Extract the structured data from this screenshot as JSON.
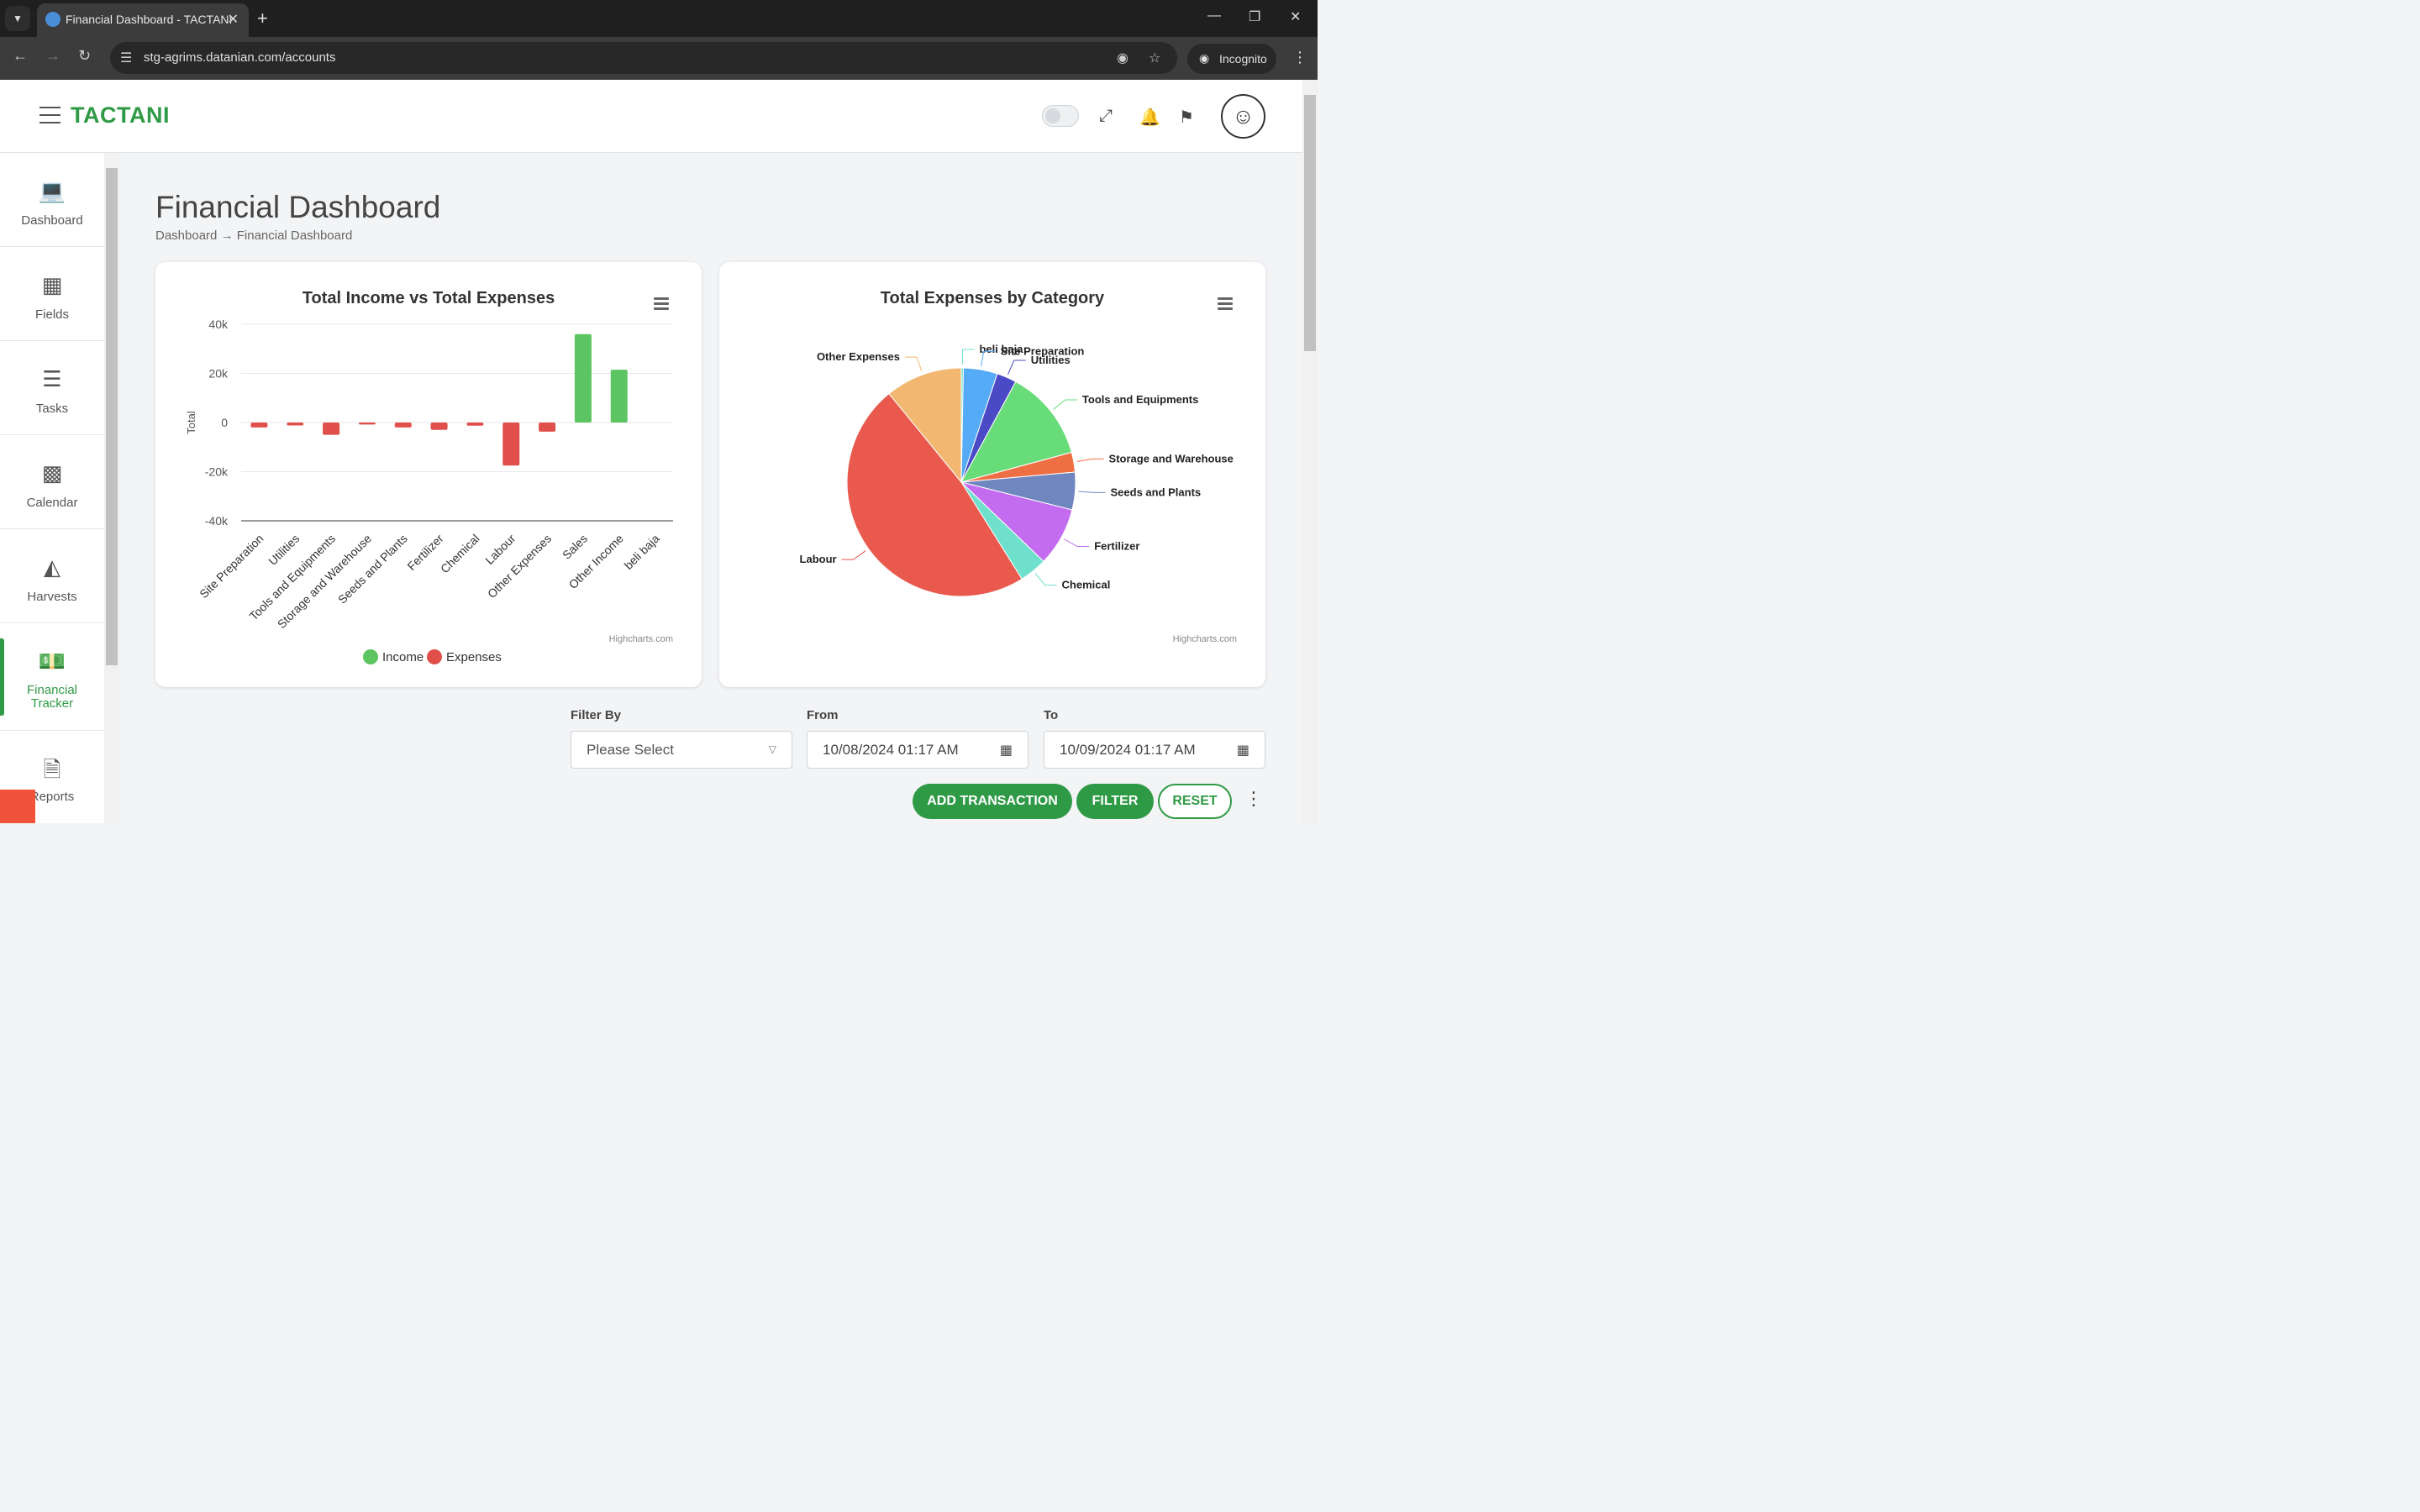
{
  "browser": {
    "tab_title": "Financial Dashboard - TACTANI",
    "url_host": "stg-agrims.datanian.com",
    "url_path": "/accounts",
    "incognito_label": "Incognito"
  },
  "header": {
    "brand": "TACTANI"
  },
  "sidebar": {
    "items": [
      {
        "label": "Dashboard",
        "icon": "laptop-icon"
      },
      {
        "label": "Fields",
        "icon": "field-icon"
      },
      {
        "label": "Tasks",
        "icon": "task-list-icon"
      },
      {
        "label": "Calendar",
        "icon": "calendar-icon"
      },
      {
        "label": "Harvests",
        "icon": "basket-icon"
      },
      {
        "label": "Financial Tracker",
        "icon": "money-icon",
        "active": true
      },
      {
        "label": "Reports",
        "icon": "report-icon"
      }
    ]
  },
  "page": {
    "title": "Financial Dashboard",
    "breadcrumb": [
      "Dashboard",
      "Financial Dashboard"
    ]
  },
  "chart_data": [
    {
      "type": "bar",
      "title": "Total Income vs Total Expenses",
      "ylabel": "Total",
      "ylim": [
        -40000,
        40000
      ],
      "yticks": [
        "40k",
        "20k",
        "0",
        "-20k",
        "-40k"
      ],
      "categories": [
        "Site Preparation",
        "Utilities",
        "Tools and Equipments",
        "Storage and Warehouse",
        "Seeds and Plants",
        "Fertilizer",
        "Chemical",
        "Labour",
        "Other Expenses",
        "Sales",
        "Other Income",
        "beli baja"
      ],
      "series": [
        {
          "name": "Income",
          "color": "#5cc460",
          "values": [
            0,
            0,
            0,
            0,
            0,
            0,
            0,
            0,
            0,
            36000,
            21500,
            0
          ]
        },
        {
          "name": "Expenses",
          "color": "#e04f4a",
          "values": [
            -2000,
            -1200,
            -5000,
            -800,
            -2000,
            -3000,
            -1300,
            -17500,
            -3700,
            0,
            0,
            0
          ]
        }
      ],
      "credit": "Highcharts.com",
      "grid": true,
      "legend": "bottom-center"
    },
    {
      "type": "pie",
      "title": "Total Expenses by Category",
      "credit": "Highcharts.com",
      "slices": [
        {
          "name": "beli baja",
          "value": 0.3,
          "color": "#6fe3d0"
        },
        {
          "name": "Site Preparation",
          "value": 4.8,
          "color": "#55abf5"
        },
        {
          "name": "Utilities",
          "value": 2.8,
          "color": "#4b4ac6"
        },
        {
          "name": "Tools and Equipments",
          "value": 12.9,
          "color": "#68dc78"
        },
        {
          "name": "Storage and Warehouse",
          "value": 2.8,
          "color": "#ef6f45"
        },
        {
          "name": "Seeds and Plants",
          "value": 5.3,
          "color": "#7086bf"
        },
        {
          "name": "Fertilizer",
          "value": 8.3,
          "color": "#c46cf0"
        },
        {
          "name": "Chemical",
          "value": 3.9,
          "color": "#6ee0cb"
        },
        {
          "name": "Labour",
          "value": 48.0,
          "color": "#e9594d"
        },
        {
          "name": "Other Expenses",
          "value": 10.9,
          "color": "#f2b872"
        }
      ]
    }
  ],
  "filters": {
    "filter_by_label": "Filter By",
    "filter_by_value": "Please Select",
    "from_label": "From",
    "from_value": "10/08/2024 01:17 AM",
    "to_label": "To",
    "to_value": "10/09/2024 01:17 AM"
  },
  "actions": {
    "add_transaction": "ADD TRANSACTION",
    "filter": "FILTER",
    "reset": "RESET"
  }
}
